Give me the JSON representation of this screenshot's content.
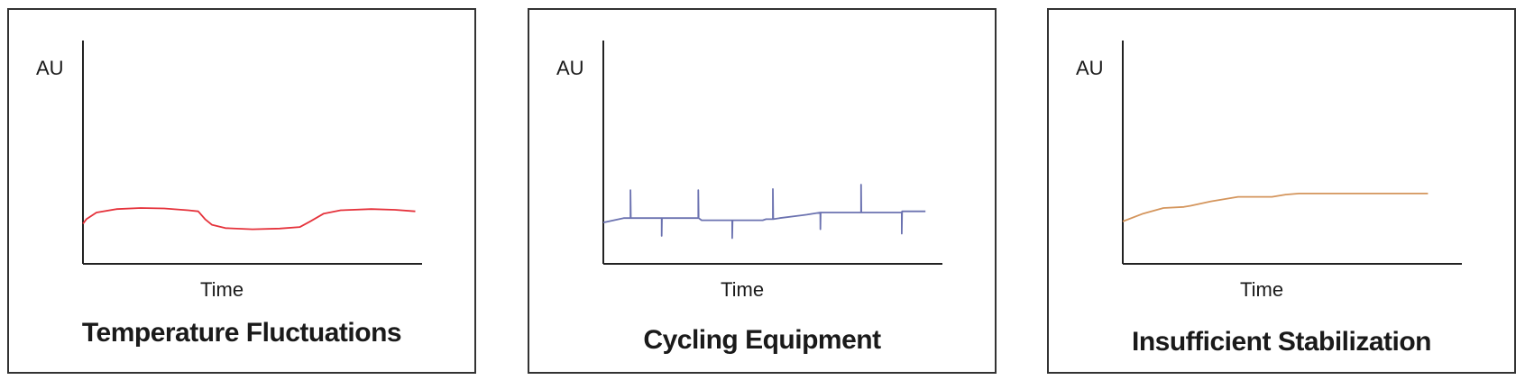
{
  "chart_data": [
    {
      "type": "line",
      "title": "Temperature Fluctuations",
      "xlabel": "Time",
      "ylabel": "AU",
      "grid": false,
      "color": "#e5323b",
      "series": [
        {
          "values": [
            [
              0.0,
              0.18
            ],
            [
              0.01,
              0.2
            ],
            [
              0.04,
              0.23
            ],
            [
              0.1,
              0.245
            ],
            [
              0.17,
              0.25
            ],
            [
              0.24,
              0.248
            ],
            [
              0.31,
              0.24
            ],
            [
              0.34,
              0.235
            ],
            [
              0.36,
              0.2
            ],
            [
              0.38,
              0.175
            ],
            [
              0.42,
              0.16
            ],
            [
              0.5,
              0.155
            ],
            [
              0.58,
              0.158
            ],
            [
              0.64,
              0.165
            ],
            [
              0.67,
              0.19
            ],
            [
              0.71,
              0.225
            ],
            [
              0.76,
              0.24
            ],
            [
              0.85,
              0.245
            ],
            [
              0.92,
              0.242
            ],
            [
              0.98,
              0.235
            ]
          ]
        }
      ]
    },
    {
      "type": "line",
      "title": "Cycling Equipment",
      "xlabel": "Time",
      "ylabel": "AU",
      "grid": false,
      "color": "#6b72b0",
      "series": [
        {
          "values": [
            [
              0.0,
              0.185
            ],
            [
              0.06,
              0.205
            ],
            [
              0.08,
              0.205
            ],
            [
              0.0801,
              0.33
            ],
            [
              0.081,
              0.205
            ],
            [
              0.172,
              0.205
            ],
            [
              0.1721,
              0.125
            ],
            [
              0.173,
              0.205
            ],
            [
              0.28,
              0.205
            ],
            [
              0.2801,
              0.33
            ],
            [
              0.281,
              0.205
            ],
            [
              0.29,
              0.195
            ],
            [
              0.38,
              0.195
            ],
            [
              0.3801,
              0.115
            ],
            [
              0.381,
              0.195
            ],
            [
              0.47,
              0.195
            ],
            [
              0.48,
              0.2
            ],
            [
              0.5,
              0.2
            ],
            [
              0.5001,
              0.335
            ],
            [
              0.501,
              0.2
            ],
            [
              0.52,
              0.205
            ],
            [
              0.6,
              0.22
            ],
            [
              0.64,
              0.23
            ],
            [
              0.6401,
              0.155
            ],
            [
              0.641,
              0.23
            ],
            [
              0.76,
              0.23
            ],
            [
              0.7601,
              0.355
            ],
            [
              0.761,
              0.23
            ],
            [
              0.88,
              0.23
            ],
            [
              0.8801,
              0.135
            ],
            [
              0.881,
              0.235
            ],
            [
              0.95,
              0.235
            ]
          ]
        }
      ]
    },
    {
      "type": "line",
      "title": "Insufficient Stabilization",
      "xlabel": "Time",
      "ylabel": "AU",
      "grid": false,
      "color": "#d4955c",
      "series": [
        {
          "values": [
            [
              0.0,
              0.19
            ],
            [
              0.06,
              0.225
            ],
            [
              0.12,
              0.25
            ],
            [
              0.18,
              0.255
            ],
            [
              0.2,
              0.26
            ],
            [
              0.26,
              0.28
            ],
            [
              0.34,
              0.3
            ],
            [
              0.44,
              0.3
            ],
            [
              0.48,
              0.31
            ],
            [
              0.52,
              0.315
            ],
            [
              0.6,
              0.315
            ],
            [
              0.7,
              0.315
            ],
            [
              0.8,
              0.315
            ],
            [
              0.9,
              0.315
            ]
          ]
        }
      ]
    }
  ]
}
